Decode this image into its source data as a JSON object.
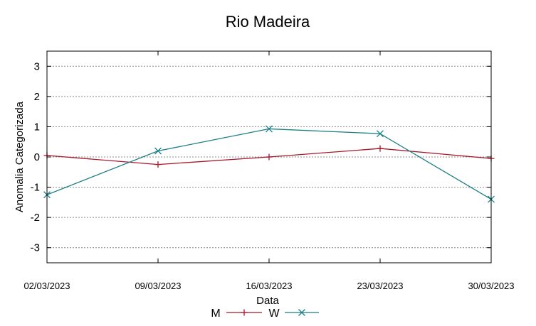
{
  "chart_data": {
    "type": "line",
    "title": "Rio Madeira",
    "xlabel": "Data",
    "ylabel": "Anomalia Categorizada",
    "categories": [
      "02/03/2023",
      "09/03/2023",
      "16/03/2023",
      "23/03/2023",
      "30/03/2023"
    ],
    "ylim": [
      -3.5,
      3.5
    ],
    "yticks": [
      -3,
      -2,
      -1,
      0,
      1,
      2,
      3
    ],
    "ytick_labels": [
      "-3",
      "-2",
      "-1",
      "0",
      "1",
      "2",
      "3"
    ],
    "grid": true,
    "legend_position": "bottom",
    "series": [
      {
        "name": "M",
        "color": "#a8172a",
        "marker": "plus",
        "values": [
          0.05,
          -0.25,
          0.0,
          0.28,
          -0.05
        ]
      },
      {
        "name": "W",
        "color": "#1b7f84",
        "marker": "x",
        "values": [
          -1.25,
          0.2,
          0.93,
          0.77,
          -1.4
        ]
      }
    ]
  }
}
